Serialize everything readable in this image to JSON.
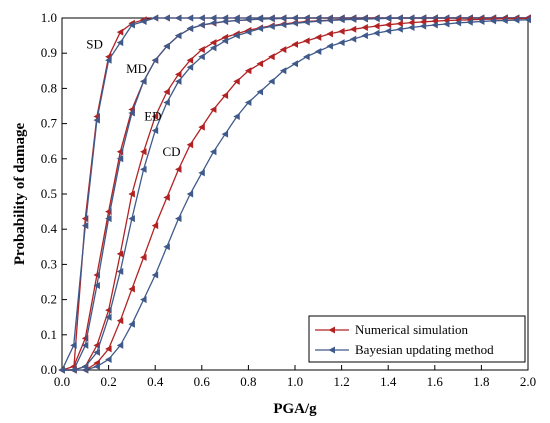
{
  "chart_data": {
    "type": "line",
    "title": "",
    "xlabel": "PGA/g",
    "ylabel": "Probability of damage",
    "xlim": [
      0.0,
      2.0
    ],
    "ylim": [
      0.0,
      1.0
    ],
    "xticks": [
      "0.0",
      "0.2",
      "0.4",
      "0.6",
      "0.8",
      "1.0",
      "1.2",
      "1.4",
      "1.6",
      "1.8",
      "2.0"
    ],
    "yticks": [
      "0.0",
      "0.1",
      "0.2",
      "0.3",
      "0.4",
      "0.5",
      "0.6",
      "0.7",
      "0.8",
      "0.9",
      "1.0"
    ],
    "grid": false,
    "legend_position": "bottom-right",
    "colors": {
      "numerical": "#b22222",
      "bayesian": "#3f5a8a"
    },
    "legend": [
      {
        "key": "numerical",
        "label": "Numerical simulation"
      },
      {
        "key": "bayesian",
        "label": "Bayesian updating method"
      }
    ],
    "curve_labels": [
      {
        "text": "SD",
        "x": 0.14,
        "y": 0.925
      },
      {
        "text": "MD",
        "x": 0.32,
        "y": 0.855
      },
      {
        "text": "ED",
        "x": 0.39,
        "y": 0.72
      },
      {
        "text": "CD",
        "x": 0.47,
        "y": 0.62
      }
    ],
    "x": [
      0.0,
      0.05,
      0.1,
      0.15,
      0.2,
      0.25,
      0.3,
      0.35,
      0.4,
      0.45,
      0.5,
      0.55,
      0.6,
      0.65,
      0.7,
      0.75,
      0.8,
      0.85,
      0.9,
      0.95,
      1.0,
      1.05,
      1.1,
      1.15,
      1.2,
      1.25,
      1.3,
      1.35,
      1.4,
      1.45,
      1.5,
      1.55,
      1.6,
      1.65,
      1.7,
      1.75,
      1.8,
      1.85,
      1.9,
      1.95,
      2.0
    ],
    "series": [
      {
        "name": "SD",
        "method": "numerical",
        "values": [
          0.0,
          0.0,
          0.43,
          0.72,
          0.89,
          0.96,
          0.985,
          0.995,
          1.0,
          1.0,
          1.0,
          1.0,
          1.0,
          1.0,
          1.0,
          1.0,
          1.0,
          1.0,
          1.0,
          1.0,
          1.0,
          1.0,
          1.0,
          1.0,
          1.0,
          1.0,
          1.0,
          1.0,
          1.0,
          1.0,
          1.0,
          1.0,
          1.0,
          1.0,
          1.0,
          1.0,
          1.0,
          1.0,
          1.0,
          1.0,
          1.0
        ]
      },
      {
        "name": "SD",
        "method": "bayesian",
        "values": [
          0.0,
          0.07,
          0.41,
          0.71,
          0.88,
          0.93,
          0.98,
          0.99,
          1.0,
          1.0,
          1.0,
          1.0,
          1.0,
          1.0,
          1.0,
          1.0,
          1.0,
          1.0,
          1.0,
          1.0,
          1.0,
          1.0,
          1.0,
          1.0,
          1.0,
          1.0,
          1.0,
          1.0,
          1.0,
          1.0,
          1.0,
          1.0,
          1.0,
          1.0,
          1.0,
          1.0,
          1.0,
          1.0,
          1.0,
          1.0,
          1.0
        ]
      },
      {
        "name": "MD",
        "method": "numerical",
        "values": [
          0.0,
          0.01,
          0.09,
          0.27,
          0.45,
          0.62,
          0.74,
          0.82,
          0.88,
          0.92,
          0.95,
          0.97,
          0.98,
          0.985,
          0.99,
          0.993,
          0.995,
          0.997,
          0.998,
          0.999,
          1.0,
          1.0,
          1.0,
          1.0,
          1.0,
          1.0,
          1.0,
          1.0,
          1.0,
          1.0,
          1.0,
          1.0,
          1.0,
          1.0,
          1.0,
          1.0,
          1.0,
          1.0,
          1.0,
          1.0,
          1.0
        ]
      },
      {
        "name": "MD",
        "method": "bayesian",
        "values": [
          0.0,
          0.0,
          0.07,
          0.24,
          0.43,
          0.6,
          0.73,
          0.82,
          0.88,
          0.92,
          0.95,
          0.97,
          0.98,
          0.986,
          0.99,
          0.993,
          0.995,
          0.997,
          0.998,
          0.999,
          1.0,
          1.0,
          1.0,
          1.0,
          1.0,
          1.0,
          1.0,
          1.0,
          1.0,
          1.0,
          1.0,
          1.0,
          1.0,
          1.0,
          1.0,
          1.0,
          1.0,
          1.0,
          1.0,
          1.0,
          1.0
        ]
      },
      {
        "name": "ED",
        "method": "numerical",
        "values": [
          0.0,
          0.0,
          0.01,
          0.07,
          0.17,
          0.33,
          0.5,
          0.62,
          0.72,
          0.79,
          0.84,
          0.88,
          0.91,
          0.93,
          0.945,
          0.955,
          0.965,
          0.972,
          0.978,
          0.983,
          0.987,
          0.99,
          0.992,
          0.994,
          0.996,
          0.997,
          0.998,
          0.999,
          0.999,
          1.0,
          1.0,
          1.0,
          1.0,
          1.0,
          1.0,
          1.0,
          1.0,
          1.0,
          1.0,
          1.0,
          1.0
        ]
      },
      {
        "name": "ED",
        "method": "bayesian",
        "values": [
          0.0,
          0.0,
          0.01,
          0.05,
          0.15,
          0.28,
          0.43,
          0.57,
          0.68,
          0.76,
          0.82,
          0.86,
          0.89,
          0.915,
          0.935,
          0.95,
          0.96,
          0.97,
          0.976,
          0.981,
          0.985,
          0.988,
          0.991,
          0.993,
          0.995,
          0.996,
          0.997,
          0.998,
          0.999,
          1.0,
          1.0,
          1.0,
          1.0,
          1.0,
          1.0,
          1.0,
          1.0,
          1.0,
          1.0,
          1.0,
          1.0
        ]
      },
      {
        "name": "CD",
        "method": "numerical",
        "values": [
          0.0,
          0.0,
          0.0,
          0.02,
          0.06,
          0.14,
          0.23,
          0.32,
          0.41,
          0.49,
          0.57,
          0.64,
          0.69,
          0.74,
          0.78,
          0.82,
          0.85,
          0.87,
          0.89,
          0.91,
          0.925,
          0.935,
          0.945,
          0.955,
          0.962,
          0.968,
          0.973,
          0.977,
          0.981,
          0.984,
          0.987,
          0.989,
          0.991,
          0.993,
          0.994,
          0.995,
          0.996,
          0.997,
          0.998,
          0.998,
          0.999
        ]
      },
      {
        "name": "CD",
        "method": "bayesian",
        "values": [
          0.0,
          0.0,
          0.0,
          0.01,
          0.03,
          0.07,
          0.13,
          0.2,
          0.27,
          0.35,
          0.43,
          0.5,
          0.56,
          0.62,
          0.67,
          0.72,
          0.76,
          0.79,
          0.82,
          0.85,
          0.87,
          0.89,
          0.905,
          0.92,
          0.93,
          0.94,
          0.95,
          0.957,
          0.963,
          0.968,
          0.973,
          0.977,
          0.98,
          0.983,
          0.986,
          0.988,
          0.99,
          0.992,
          0.993,
          0.994,
          0.995
        ]
      }
    ]
  }
}
